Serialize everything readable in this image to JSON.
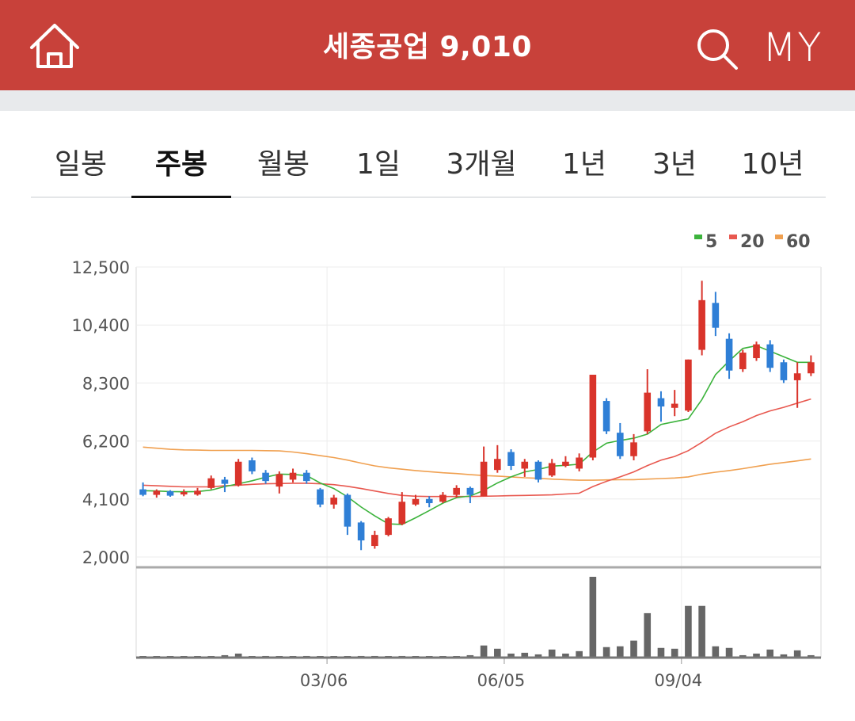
{
  "header": {
    "title": "세종공업 9,010",
    "my_label": "MY",
    "background_color": "#c8413a",
    "icons": {
      "home": "home-icon",
      "search": "search-icon"
    }
  },
  "tabs": [
    {
      "label": "일봉",
      "active": false
    },
    {
      "label": "주봉",
      "active": true
    },
    {
      "label": "월봉",
      "active": false
    },
    {
      "label": "1일",
      "active": false
    },
    {
      "label": "3개월",
      "active": false
    },
    {
      "label": "1년",
      "active": false
    },
    {
      "label": "3년",
      "active": false
    },
    {
      "label": "10년",
      "active": false
    }
  ],
  "chart_data": {
    "type": "candlestick",
    "up_color": "#d9342b",
    "down_color": "#2f7fd6",
    "legend": [
      {
        "label": "5",
        "color": "#3cb33c"
      },
      {
        "label": "20",
        "color": "#e8584f"
      },
      {
        "label": "60",
        "color": "#f0a050"
      }
    ],
    "legend_position": "top-right",
    "y_ticks": [
      "12,500",
      "10,400",
      "8,300",
      "6,200",
      "4,100",
      "2,000"
    ],
    "ylim": [
      2000,
      12500
    ],
    "x_ticks": [
      "03/06",
      "06/05",
      "09/04"
    ],
    "x_tick_index": [
      14,
      27,
      40
    ],
    "grid": true,
    "candles": [
      [
        4450,
        4250,
        4700,
        4200
      ],
      [
        4250,
        4400,
        4450,
        4150
      ],
      [
        4380,
        4220,
        4420,
        4180
      ],
      [
        4300,
        4350,
        4450,
        4200
      ],
      [
        4260,
        4400,
        4500,
        4220
      ],
      [
        4500,
        4850,
        4950,
        4450
      ],
      [
        4800,
        4650,
        4900,
        4350
      ],
      [
        4600,
        5450,
        5550,
        4550
      ],
      [
        5500,
        5100,
        5600,
        5000
      ],
      [
        5050,
        4750,
        5150,
        4650
      ],
      [
        4550,
        5000,
        5100,
        4300
      ],
      [
        4800,
        5050,
        5200,
        4700
      ],
      [
        5050,
        4750,
        5150,
        4650
      ],
      [
        4450,
        3900,
        4500,
        3800
      ],
      [
        3900,
        4150,
        4250,
        3750
      ],
      [
        4250,
        3100,
        4300,
        2800
      ],
      [
        3250,
        2600,
        3300,
        2250
      ],
      [
        2400,
        2800,
        2950,
        2300
      ],
      [
        2800,
        3400,
        3450,
        2750
      ],
      [
        3200,
        4000,
        4350,
        3150
      ],
      [
        3900,
        4100,
        4250,
        3850
      ],
      [
        4100,
        3950,
        4200,
        3800
      ],
      [
        4000,
        4250,
        4350,
        3950
      ],
      [
        4250,
        4500,
        4600,
        4150
      ],
      [
        4500,
        4250,
        4550,
        3950
      ],
      [
        4200,
        5450,
        6000,
        4200
      ],
      [
        5150,
        5550,
        6050,
        5050
      ],
      [
        5800,
        5300,
        5900,
        5150
      ],
      [
        5200,
        5450,
        5550,
        4900
      ],
      [
        5450,
        4800,
        5500,
        4700
      ],
      [
        4950,
        5400,
        5550,
        4900
      ],
      [
        5300,
        5450,
        5650,
        5250
      ],
      [
        5200,
        5600,
        5750,
        5100
      ],
      [
        5600,
        8600,
        8600,
        5500
      ],
      [
        7650,
        6550,
        7750,
        6450
      ],
      [
        6500,
        5650,
        6850,
        5550
      ],
      [
        5650,
        6150,
        6450,
        5500
      ],
      [
        6550,
        7950,
        8800,
        6450
      ],
      [
        7750,
        7450,
        8000,
        6900
      ],
      [
        7400,
        7550,
        8050,
        7100
      ],
      [
        7300,
        9150,
        9150,
        7250
      ],
      [
        9500,
        11300,
        12000,
        9300
      ],
      [
        11200,
        10300,
        11600,
        10000
      ],
      [
        9900,
        8750,
        10100,
        8450
      ],
      [
        8800,
        9400,
        9500,
        8700
      ],
      [
        9200,
        9700,
        9800,
        9100
      ],
      [
        9700,
        8850,
        9850,
        8700
      ],
      [
        9050,
        8400,
        9150,
        8300
      ],
      [
        8400,
        8650,
        9050,
        7400
      ],
      [
        8650,
        9050,
        9300,
        8550
      ]
    ],
    "ma5": [
      4400,
      4390,
      4370,
      4360,
      4370,
      4420,
      4550,
      4650,
      4760,
      4890,
      5000,
      4990,
      4950,
      4680,
      4480,
      4180,
      3810,
      3490,
      3200,
      3180,
      3420,
      3680,
      3950,
      4150,
      4210,
      4410,
      4680,
      4900,
      5080,
      5170,
      5290,
      5320,
      5360,
      5800,
      6120,
      6220,
      6300,
      6450,
      6800,
      6900,
      7000,
      7700,
      8600,
      9100,
      9550,
      9650,
      9450,
      9250,
      9050,
      9050
    ],
    "ma20": [
      4600,
      4580,
      4560,
      4540,
      4540,
      4540,
      4580,
      4600,
      4630,
      4650,
      4660,
      4670,
      4670,
      4650,
      4620,
      4560,
      4480,
      4390,
      4300,
      4230,
      4200,
      4190,
      4190,
      4190,
      4190,
      4200,
      4210,
      4220,
      4230,
      4240,
      4250,
      4280,
      4310,
      4550,
      4740,
      4900,
      5080,
      5310,
      5510,
      5640,
      5850,
      6150,
      6480,
      6710,
      6900,
      7120,
      7290,
      7420,
      7570,
      7720
    ],
    "ma60": [
      5980,
      5940,
      5900,
      5880,
      5870,
      5860,
      5860,
      5860,
      5860,
      5850,
      5840,
      5800,
      5740,
      5670,
      5600,
      5510,
      5400,
      5300,
      5230,
      5180,
      5130,
      5090,
      5050,
      5020,
      4980,
      4950,
      4930,
      4900,
      4870,
      4850,
      4820,
      4800,
      4780,
      4780,
      4790,
      4800,
      4800,
      4820,
      4840,
      4860,
      4900,
      5000,
      5070,
      5130,
      5200,
      5280,
      5360,
      5420,
      5480,
      5550
    ],
    "volume": [
      0,
      0,
      0,
      0,
      0,
      0,
      0.03,
      0.05,
      0,
      0.02,
      0,
      0,
      0.02,
      0,
      0,
      0,
      0.02,
      0.02,
      0,
      0.02,
      0,
      0,
      0,
      0,
      0.03,
      0.15,
      0.11,
      0.05,
      0.06,
      0.04,
      0.1,
      0.05,
      0.08,
      1.0,
      0.13,
      0.14,
      0.21,
      0.55,
      0.12,
      0.11,
      0.64,
      0.64,
      0.14,
      0.12,
      0.03,
      0.05,
      0.1,
      0.04,
      0.09,
      0.03
    ]
  }
}
